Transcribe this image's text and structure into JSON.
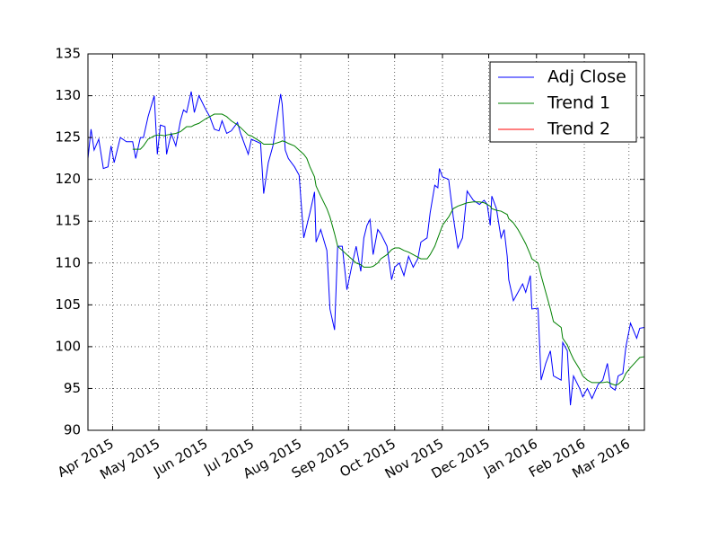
{
  "chart_data": {
    "type": "line",
    "x": [
      "2015-03-16",
      "2015-03-18",
      "2015-03-20",
      "2015-03-23",
      "2015-03-26",
      "2015-03-29",
      "2015-03-31",
      "2015-04-02",
      "2015-04-06",
      "2015-04-10",
      "2015-04-14",
      "2015-04-16",
      "2015-04-19",
      "2015-04-21",
      "2015-04-24",
      "2015-04-28",
      "2015-04-30",
      "2015-05-02",
      "2015-05-05",
      "2015-05-06",
      "2015-05-09",
      "2015-05-12",
      "2015-05-15",
      "2015-05-17",
      "2015-05-19",
      "2015-05-22",
      "2015-05-24",
      "2015-05-27",
      "2015-05-31",
      "2015-06-03",
      "2015-06-06",
      "2015-06-09",
      "2015-06-11",
      "2015-06-14",
      "2015-06-17",
      "2015-06-21",
      "2015-06-23",
      "2015-06-28",
      "2015-06-30",
      "2015-07-06",
      "2015-07-08",
      "2015-07-11",
      "2015-07-14",
      "2015-07-19",
      "2015-07-20",
      "2015-07-22",
      "2015-07-24",
      "2015-07-28",
      "2015-07-31",
      "2015-08-03",
      "2015-08-05",
      "2015-08-07",
      "2015-08-10",
      "2015-08-11",
      "2015-08-14",
      "2015-08-18",
      "2015-08-20",
      "2015-08-23",
      "2015-08-25",
      "2015-08-28",
      "2015-08-31",
      "2015-09-03",
      "2015-09-06",
      "2015-09-09",
      "2015-09-11",
      "2015-09-13",
      "2015-09-15",
      "2015-09-17",
      "2015-09-20",
      "2015-09-22",
      "2015-09-26",
      "2015-09-29",
      "2015-10-01",
      "2015-10-04",
      "2015-10-07",
      "2015-10-10",
      "2015-10-13",
      "2015-10-16",
      "2015-10-18",
      "2015-10-22",
      "2015-10-24",
      "2015-10-27",
      "2015-10-29",
      "2015-10-30",
      "2015-11-01",
      "2015-11-05",
      "2015-11-08",
      "2015-11-11",
      "2015-11-14",
      "2015-11-17",
      "2015-11-21",
      "2015-11-25",
      "2015-11-28",
      "2015-11-30",
      "2015-12-02",
      "2015-12-03",
      "2015-12-06",
      "2015-12-09",
      "2015-12-11",
      "2015-12-13",
      "2015-12-14",
      "2015-12-17",
      "2015-12-20",
      "2015-12-23",
      "2015-12-25",
      "2015-12-28",
      "2015-12-29",
      "2016-01-02",
      "2016-01-04",
      "2016-01-07",
      "2016-01-10",
      "2016-01-12",
      "2016-01-17",
      "2016-01-18",
      "2016-01-21",
      "2016-01-23",
      "2016-01-25",
      "2016-01-29",
      "2016-01-31",
      "2016-02-03",
      "2016-02-06",
      "2016-02-10",
      "2016-02-13",
      "2016-02-16",
      "2016-02-18",
      "2016-02-21",
      "2016-02-23",
      "2016-02-26",
      "2016-02-28",
      "2016-03-02",
      "2016-03-06",
      "2016-03-08",
      "2016-03-11"
    ],
    "series": [
      {
        "name": "Adj Close",
        "color": "#0000ff",
        "values": [
          122.5,
          126,
          123.5,
          124.8,
          121.3,
          121.5,
          124,
          122,
          125,
          124.5,
          124.5,
          122.5,
          125,
          125,
          127.5,
          130,
          123,
          126.5,
          126.3,
          123,
          125.5,
          124,
          127,
          128.3,
          128,
          130.5,
          128,
          130,
          128.5,
          127.5,
          126,
          125.8,
          127,
          125.5,
          125.8,
          126.8,
          125.5,
          123,
          124.8,
          124.3,
          118.3,
          122,
          124,
          130.2,
          129,
          123.5,
          122.5,
          121.5,
          120.5,
          113,
          114.5,
          116,
          118.5,
          112.5,
          114,
          111.5,
          104.5,
          102,
          112,
          112,
          106.8,
          109.5,
          112,
          109,
          113,
          114.5,
          115.2,
          111,
          114,
          113.5,
          112,
          108,
          109.5,
          110,
          108.5,
          110.8,
          109.5,
          110.5,
          112.5,
          113,
          116,
          119.3,
          119,
          121.3,
          120.3,
          120,
          115.5,
          111.8,
          113,
          118.6,
          117.5,
          117,
          117.5,
          117,
          114.5,
          118,
          116.5,
          113,
          114,
          110.8,
          108,
          105.5,
          106.5,
          107.5,
          106.5,
          108.5,
          104.5,
          104.6,
          96,
          98,
          99.5,
          96.5,
          96,
          100.5,
          99.5,
          93,
          96.5,
          95,
          94,
          95,
          93.8,
          95.5,
          96,
          98,
          95.2,
          94.8,
          96.5,
          96.8,
          100,
          102.8,
          101,
          102.2,
          102.3
        ]
      },
      {
        "name": "Trend 1",
        "color": "#008000",
        "values": [
          null,
          null,
          null,
          null,
          null,
          null,
          null,
          null,
          null,
          null,
          123.6,
          123.6,
          123.6,
          124,
          124.8,
          125.2,
          125.3,
          125.3,
          125.2,
          125.3,
          125.4,
          125.5,
          125.7,
          126,
          126.3,
          126.3,
          126.5,
          126.7,
          127.2,
          127.5,
          127.8,
          127.8,
          127.8,
          127.5,
          127,
          126.5,
          126.2,
          125.3,
          125.2,
          124.5,
          124.2,
          124.2,
          124.2,
          124.5,
          124.6,
          124.5,
          124.3,
          124,
          123.5,
          123,
          122.5,
          121.5,
          120.3,
          119.2,
          118,
          116.5,
          115.5,
          113.5,
          112,
          111.5,
          111,
          110.5,
          110,
          109.8,
          109.5,
          109.5,
          109.5,
          109.6,
          110,
          110.5,
          111,
          111.6,
          111.8,
          111.8,
          111.5,
          111.3,
          111,
          110.7,
          110.5,
          110.5,
          111,
          112,
          113,
          113.5,
          114.5,
          115.5,
          116.5,
          116.8,
          117,
          117.2,
          117.3,
          117.3,
          117.2,
          117,
          116.8,
          116.5,
          116.3,
          116.2,
          116,
          115.8,
          115.3,
          114.8,
          114,
          113,
          112.3,
          111,
          110.5,
          110,
          108.5,
          106.5,
          104.5,
          103,
          102.3,
          101,
          100.2,
          99.3,
          98.5,
          97.3,
          96.5,
          96,
          95.7,
          95.7,
          95.7,
          95.8,
          95.6,
          95.4,
          95.5,
          96,
          96.8,
          97.5,
          98.3,
          98.7,
          98.8
        ]
      },
      {
        "name": "Trend 2",
        "color": "#ff0000",
        "values": [
          null,
          null,
          null,
          null,
          null,
          null,
          null,
          null,
          null,
          null,
          null,
          null,
          null,
          null,
          null,
          null,
          null,
          null,
          null,
          null,
          null,
          null,
          null,
          null,
          null,
          null,
          null,
          null,
          null,
          null,
          null,
          null,
          null,
          null,
          null,
          null,
          null,
          null,
          null,
          null,
          null,
          null,
          null,
          null,
          null,
          null,
          null,
          null,
          null,
          null,
          null,
          null,
          null,
          null,
          null,
          null,
          null,
          null,
          null,
          null,
          null,
          null,
          null,
          null,
          null,
          null,
          null,
          null,
          null,
          null,
          null,
          null,
          null,
          null,
          null,
          null,
          null,
          null,
          null,
          null,
          null,
          null,
          null,
          null,
          null,
          null,
          null,
          null,
          null,
          null,
          null,
          null,
          null,
          null,
          null,
          null,
          null,
          null,
          null,
          null,
          null,
          null,
          null,
          null,
          null,
          null,
          null,
          null,
          null,
          null,
          null,
          null,
          null,
          null,
          null,
          null,
          null,
          null,
          null,
          null,
          null,
          null,
          null,
          null,
          null,
          null,
          null,
          null,
          null,
          null,
          null,
          null,
          null
        ]
      }
    ],
    "xlim": [
      "2015-03-16",
      "2016-03-11"
    ],
    "xticks": [
      {
        "value": "2015-04-01",
        "label": "Apr 2015"
      },
      {
        "value": "2015-05-01",
        "label": "May 2015"
      },
      {
        "value": "2015-06-01",
        "label": "Jun 2015"
      },
      {
        "value": "2015-07-01",
        "label": "Jul 2015"
      },
      {
        "value": "2015-08-01",
        "label": "Aug 2015"
      },
      {
        "value": "2015-09-01",
        "label": "Sep 2015"
      },
      {
        "value": "2015-10-01",
        "label": "Oct 2015"
      },
      {
        "value": "2015-11-01",
        "label": "Nov 2015"
      },
      {
        "value": "2015-12-01",
        "label": "Dec 2015"
      },
      {
        "value": "2016-01-01",
        "label": "Jan 2016"
      },
      {
        "value": "2016-02-01",
        "label": "Feb 2016"
      },
      {
        "value": "2016-03-01",
        "label": "Mar 2016"
      }
    ],
    "ylim": [
      90,
      135
    ],
    "yticks": [
      90,
      95,
      100,
      105,
      110,
      115,
      120,
      125,
      130,
      135
    ],
    "grid": true,
    "legend": "upper right"
  }
}
